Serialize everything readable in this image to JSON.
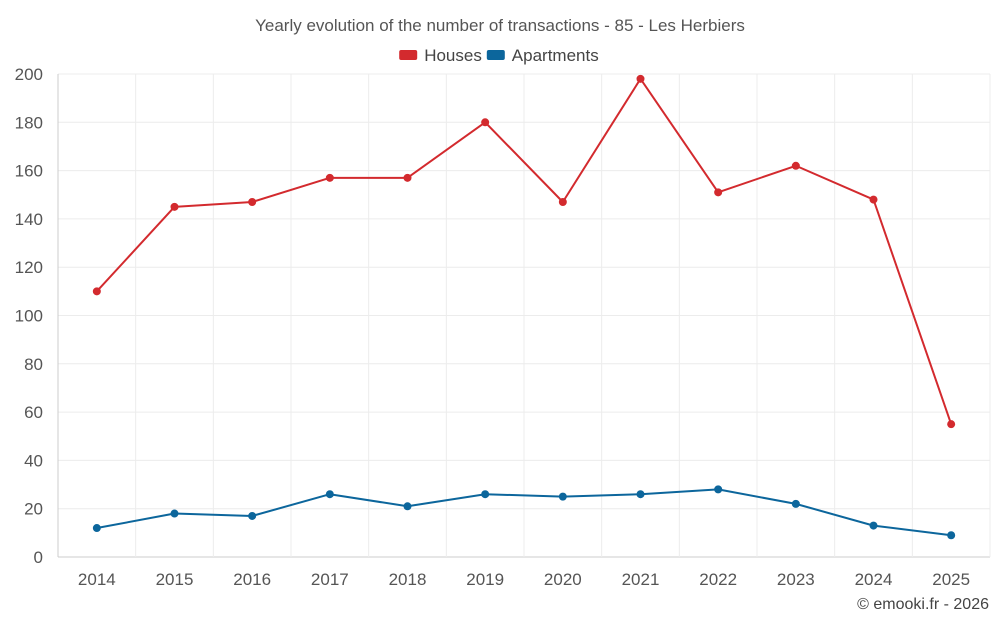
{
  "chart_data": {
    "type": "line",
    "title": "Yearly evolution of the number of transactions - 85 - Les Herbiers",
    "xlabel": "",
    "ylabel": "",
    "categories": [
      "2014",
      "2015",
      "2016",
      "2017",
      "2018",
      "2019",
      "2020",
      "2021",
      "2022",
      "2023",
      "2024",
      "2025"
    ],
    "ylim": [
      0,
      200
    ],
    "yticks": [
      0,
      20,
      40,
      60,
      80,
      100,
      120,
      140,
      160,
      180,
      200
    ],
    "grid": true,
    "legend_position": "top-center",
    "series": [
      {
        "name": "Houses",
        "color": "#d32a2e",
        "values": [
          110,
          145,
          147,
          157,
          157,
          180,
          147,
          198,
          151,
          162,
          148,
          55
        ]
      },
      {
        "name": "Apartments",
        "color": "#0c669c",
        "values": [
          12,
          18,
          17,
          26,
          21,
          26,
          25,
          26,
          28,
          22,
          13,
          9
        ]
      }
    ]
  },
  "credit": "© emooki.fr - 2026"
}
